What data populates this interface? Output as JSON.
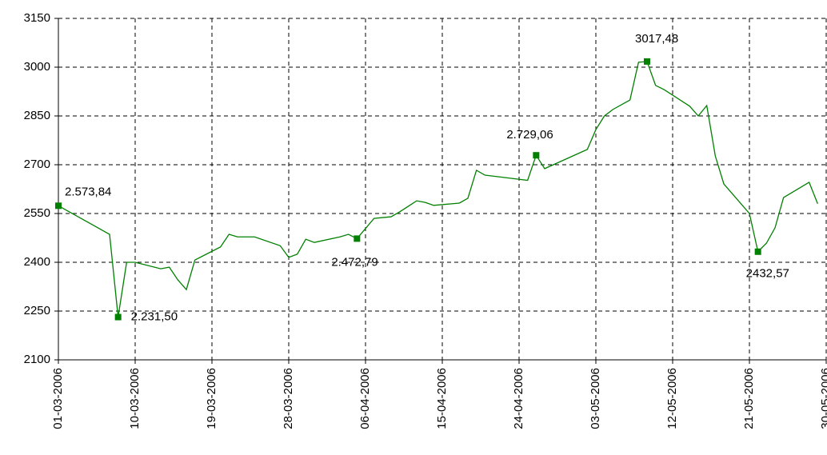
{
  "chart_data": {
    "type": "line",
    "x": [
      "01-03-2006",
      "07-03-2006",
      "08-03-2006",
      "09-03-2006",
      "10-03-2006",
      "13-03-2006",
      "14-03-2006",
      "15-03-2006",
      "16-03-2006",
      "17-03-2006",
      "20-03-2006",
      "21-03-2006",
      "22-03-2006",
      "24-03-2006",
      "27-03-2006",
      "28-03-2006",
      "29-03-2006",
      "30-03-2006",
      "31-03-2006",
      "03-04-2006",
      "04-04-2006",
      "05-04-2006",
      "07-04-2006",
      "09-04-2006",
      "10-04-2006",
      "12-04-2006",
      "13-04-2006",
      "14-04-2006",
      "17-04-2006",
      "18-04-2006",
      "19-04-2006",
      "20-04-2006",
      "25-04-2006",
      "26-04-2006",
      "27-04-2006",
      "02-05-2006",
      "03-05-2006",
      "04-05-2006",
      "05-05-2006",
      "07-05-2006",
      "08-05-2006",
      "09-05-2006",
      "10-05-2006",
      "11-05-2006",
      "14-05-2006",
      "15-05-2006",
      "16-05-2006",
      "17-05-2006",
      "18-05-2006",
      "21-05-2006",
      "22-05-2006",
      "23-05-2006",
      "24-05-2006",
      "25-05-2006",
      "28-05-2006",
      "29-05-2006"
    ],
    "values": [
      2573.84,
      2486,
      2231.5,
      2400,
      2400,
      2380,
      2385,
      2346,
      2316,
      2407,
      2447,
      2486,
      2478,
      2478,
      2451,
      2415,
      2425,
      2471,
      2461,
      2478,
      2486,
      2472.79,
      2535,
      2540,
      2555,
      2589,
      2584,
      2575,
      2582,
      2597,
      2683,
      2668,
      2652,
      2729.06,
      2688,
      2747,
      2808,
      2850,
      2870,
      2899,
      3015,
      3017.48,
      2944,
      2931,
      2880,
      2850,
      2882,
      2727,
      2641,
      2550,
      2432.57,
      2459,
      2506,
      2599,
      2646,
      2580
    ],
    "value_labels": [
      "2.573,84",
      null,
      "2.231,50",
      null,
      null,
      null,
      null,
      null,
      null,
      null,
      null,
      null,
      null,
      null,
      null,
      null,
      null,
      null,
      null,
      null,
      null,
      "2.472,79",
      null,
      null,
      null,
      null,
      null,
      null,
      null,
      null,
      null,
      null,
      null,
      "2.729,06",
      null,
      null,
      null,
      null,
      null,
      null,
      null,
      "3017,48",
      null,
      null,
      null,
      null,
      null,
      null,
      null,
      null,
      "2432,57",
      null,
      null,
      null,
      null,
      null
    ],
    "color": "#008000",
    "xlim": [
      "01-03-2006",
      "30-05-2006"
    ],
    "xticks": [
      "01-03-2006",
      "10-03-2006",
      "19-03-2006",
      "28-03-2006",
      "06-04-2006",
      "15-04-2006",
      "24-04-2006",
      "03-05-2006",
      "12-05-2006",
      "21-05-2006",
      "30-05-2006"
    ],
    "ylim": [
      2100,
      3150
    ],
    "yticks": [
      2100,
      2250,
      2400,
      2550,
      2700,
      2850,
      3000,
      3150
    ],
    "grid": true
  }
}
